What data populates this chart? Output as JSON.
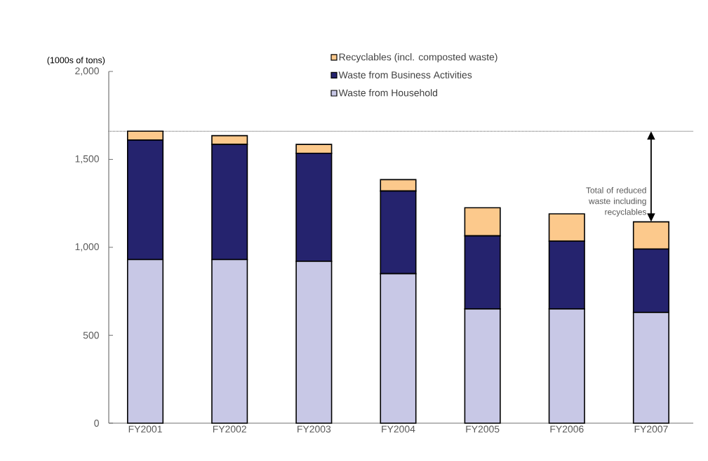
{
  "chart_data": {
    "type": "bar",
    "stacked": true,
    "ylabel": "(1000s of tons)",
    "categories": [
      "FY2001",
      "FY2002",
      "FY2003",
      "FY2004",
      "FY2005",
      "FY2006",
      "FY2007"
    ],
    "series": [
      {
        "name": "Waste from Household",
        "color": "#c8c8e6",
        "values": [
          930,
          930,
          920,
          850,
          650,
          650,
          630
        ]
      },
      {
        "name": "Waste from Business Activities",
        "color": "#25236e",
        "values": [
          680,
          655,
          615,
          470,
          415,
          385,
          360
        ]
      },
      {
        "name": "Recyclables (incl. composted waste)",
        "color": "#fcc98c",
        "values": [
          50,
          50,
          50,
          65,
          160,
          155,
          155
        ]
      }
    ],
    "ylim": [
      0,
      2000
    ],
    "yticks": [
      0,
      {
        "value": 500,
        "label": "500"
      },
      {
        "value": 1000,
        "label": "1,000"
      },
      {
        "value": 1500,
        "label": "1,500"
      },
      {
        "value": 2000,
        "label": "2,000"
      }
    ],
    "ref_lines": [
      {
        "axis": "y",
        "value": 1660,
        "line_style": "dotted"
      }
    ],
    "annotations": [
      {
        "text": "Total of reduced waste including recyclables",
        "x": "FY2007",
        "y": 1145
      }
    ],
    "legend": "top right"
  }
}
